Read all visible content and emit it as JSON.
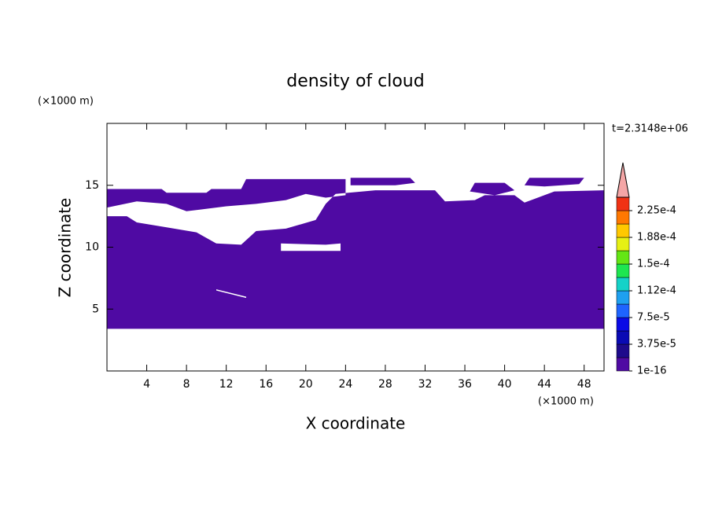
{
  "chart_data": {
    "type": "contour",
    "title": "density of cloud",
    "xlabel": "X coordinate",
    "ylabel": "Z coordinate",
    "x_unit": "(×1000 m)",
    "y_unit": "(×1000 m)",
    "annotation": "t=2.3148e+06",
    "xlim": [
      0,
      50
    ],
    "ylim": [
      0,
      20
    ],
    "xticks": [
      4,
      8,
      12,
      16,
      20,
      24,
      28,
      32,
      36,
      40,
      44,
      48
    ],
    "yticks": [
      5,
      10,
      15
    ],
    "fill_color": "#4f0aa3",
    "region": {
      "x": [
        0,
        50,
        50,
        45,
        42,
        41,
        38,
        37,
        34,
        33,
        27,
        23,
        22,
        21,
        18,
        15,
        13.5,
        11,
        9,
        6,
        3,
        2,
        0,
        null,
        17.5,
        23.5,
        23.5,
        22,
        17.5,
        null,
        11,
        14,
        14,
        11,
        null,
        0,
        5.5,
        6,
        10,
        10.5,
        13.5,
        14,
        24,
        24,
        22,
        20,
        18,
        15,
        12,
        8,
        6,
        3,
        0,
        null,
        24.5,
        24.5,
        30.5,
        31,
        29,
        null,
        36.5,
        37,
        40,
        41,
        39,
        null,
        42,
        42.5,
        48,
        47.5,
        44
      ],
      "y": [
        3.4,
        3.4,
        14.6,
        14.5,
        13.6,
        14.2,
        14.2,
        13.8,
        13.7,
        14.6,
        14.6,
        14.3,
        13.5,
        12.2,
        11.5,
        11.3,
        10.2,
        10.3,
        11.2,
        11.6,
        12,
        12.5,
        12.5,
        null,
        9.7,
        9.7,
        10.3,
        10.2,
        10.3,
        null,
        6.6,
        6,
        5.9,
        6.5,
        null,
        14.7,
        14.7,
        14.4,
        14.4,
        14.7,
        14.7,
        15.5,
        15.5,
        14.2,
        14,
        14.3,
        13.8,
        13.5,
        13.3,
        12.9,
        13.5,
        13.7,
        13.2,
        null,
        15,
        15.6,
        15.6,
        15.2,
        15,
        null,
        14.5,
        15.2,
        15.2,
        14.6,
        14.2,
        null,
        15,
        15.6,
        15.6,
        15.1,
        14.9
      ]
    },
    "colorbar": {
      "colors": [
        "#4f0aa3",
        "#1e0a8c",
        "#0a0ab4",
        "#0a0ae6",
        "#1e64ff",
        "#1ea0f0",
        "#14d2c8",
        "#1ee650",
        "#64e614",
        "#e6f014",
        "#ffc800",
        "#ff7800",
        "#f03214"
      ],
      "extend_color": "#f4a6a6",
      "ticks": [
        1e-16,
        {
          "value": 3.75e-05,
          "label": "3.75e-5"
        },
        {
          "value": 7.5e-05,
          "label": "7.5e-5"
        },
        {
          "value": 0.000112,
          "label": "1.12e-4"
        },
        {
          "value": 0.00015,
          "label": "1.5e-4"
        },
        {
          "value": 0.000188,
          "label": "1.88e-4"
        },
        {
          "value": 0.000225,
          "label": "2.25e-4"
        }
      ]
    }
  }
}
